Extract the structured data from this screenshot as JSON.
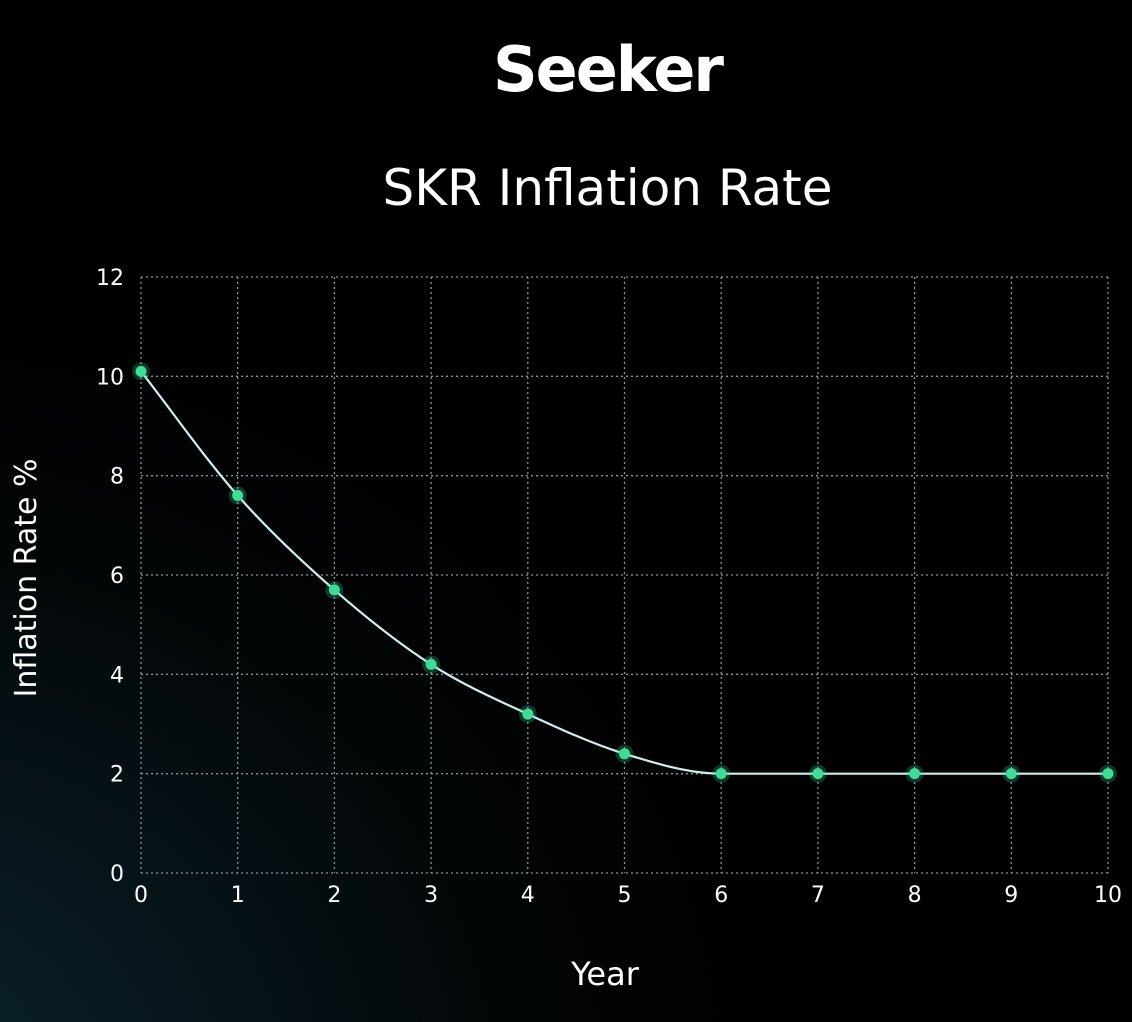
{
  "brand": {
    "name": "Seeker"
  },
  "colors": {
    "line": "#cdeff0",
    "point": "#3ddc97",
    "grid": "#8a9496",
    "text": "#ffffff",
    "ylabel": "#c8cccd"
  },
  "chart_data": {
    "type": "line",
    "title": "SKR Inflation Rate",
    "xlabel": "Year",
    "ylabel": "Inflation Rate %",
    "xlim": [
      0,
      10
    ],
    "ylim": [
      0,
      12
    ],
    "x_ticks": [
      0,
      1,
      2,
      3,
      4,
      5,
      6,
      7,
      8,
      9,
      10
    ],
    "y_ticks": [
      0,
      2,
      4,
      6,
      8,
      10,
      12
    ],
    "grid": true,
    "series": [
      {
        "x": [
          0,
          1,
          2,
          3,
          4,
          5,
          6,
          7,
          8,
          9,
          10
        ],
        "values": [
          10.1,
          7.6,
          5.7,
          4.2,
          3.2,
          2.4,
          2.0,
          2.0,
          2.0,
          2.0,
          2.0
        ]
      }
    ]
  }
}
